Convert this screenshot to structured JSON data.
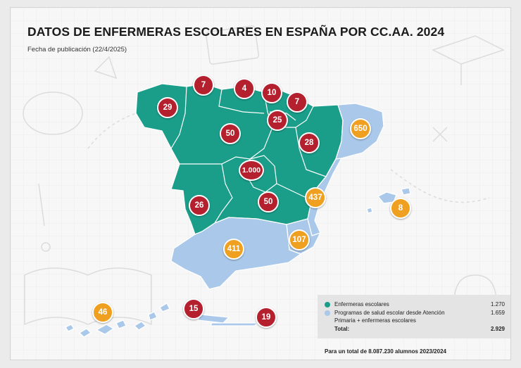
{
  "title": "DATOS DE ENFERMERAS ESCOLARES EN ESPAÑA POR CC.AA. 2024",
  "subtitle": "Fecha de publicación (22/4/2025)",
  "colors": {
    "enfermeras": "#1a9e8a",
    "programas": "#a9c8ea",
    "badge_red": "#b4202e",
    "badge_orange": "#f0a020"
  },
  "regions": {
    "galicia": {
      "value": "29",
      "type": "enfermeras"
    },
    "asturias": {
      "value": "7",
      "type": "enfermeras"
    },
    "cantabria": {
      "value": "4",
      "type": "enfermeras"
    },
    "pais_vasco": {
      "value": "10",
      "type": "enfermeras"
    },
    "navarra": {
      "value": "7",
      "type": "enfermeras"
    },
    "la_rioja": {
      "value": "25",
      "type": "enfermeras"
    },
    "castilla_y_leon": {
      "value": "50",
      "type": "enfermeras"
    },
    "aragon": {
      "value": "28",
      "type": "enfermeras"
    },
    "cataluna": {
      "value": "650",
      "type": "programas"
    },
    "madrid": {
      "value": "1.000",
      "type": "enfermeras"
    },
    "extremadura": {
      "value": "26",
      "type": "enfermeras"
    },
    "castilla_la_mancha": {
      "value": "50",
      "type": "enfermeras"
    },
    "comunidad_valenciana": {
      "value": "437",
      "type": "programas"
    },
    "baleares": {
      "value": "8",
      "type": "programas"
    },
    "murcia": {
      "value": "107",
      "type": "programas"
    },
    "andalucia": {
      "value": "411",
      "type": "programas"
    },
    "canarias": {
      "value": "46",
      "type": "programas"
    },
    "ceuta": {
      "value": "15",
      "type": "enfermeras"
    },
    "melilla": {
      "value": "19",
      "type": "enfermeras"
    }
  },
  "legend": {
    "items": [
      {
        "label": "Enfermeras escolares",
        "value": "1.270"
      },
      {
        "label": "Programas de salud escolar desde Atención",
        "value": "1.659"
      },
      {
        "label": "Primaria + enfermeras escolares",
        "value": ""
      }
    ],
    "total_label": "Total:",
    "total_value": "2.929"
  },
  "footnote": "Para un total de 8.087.230 alumnos 2023/2024"
}
